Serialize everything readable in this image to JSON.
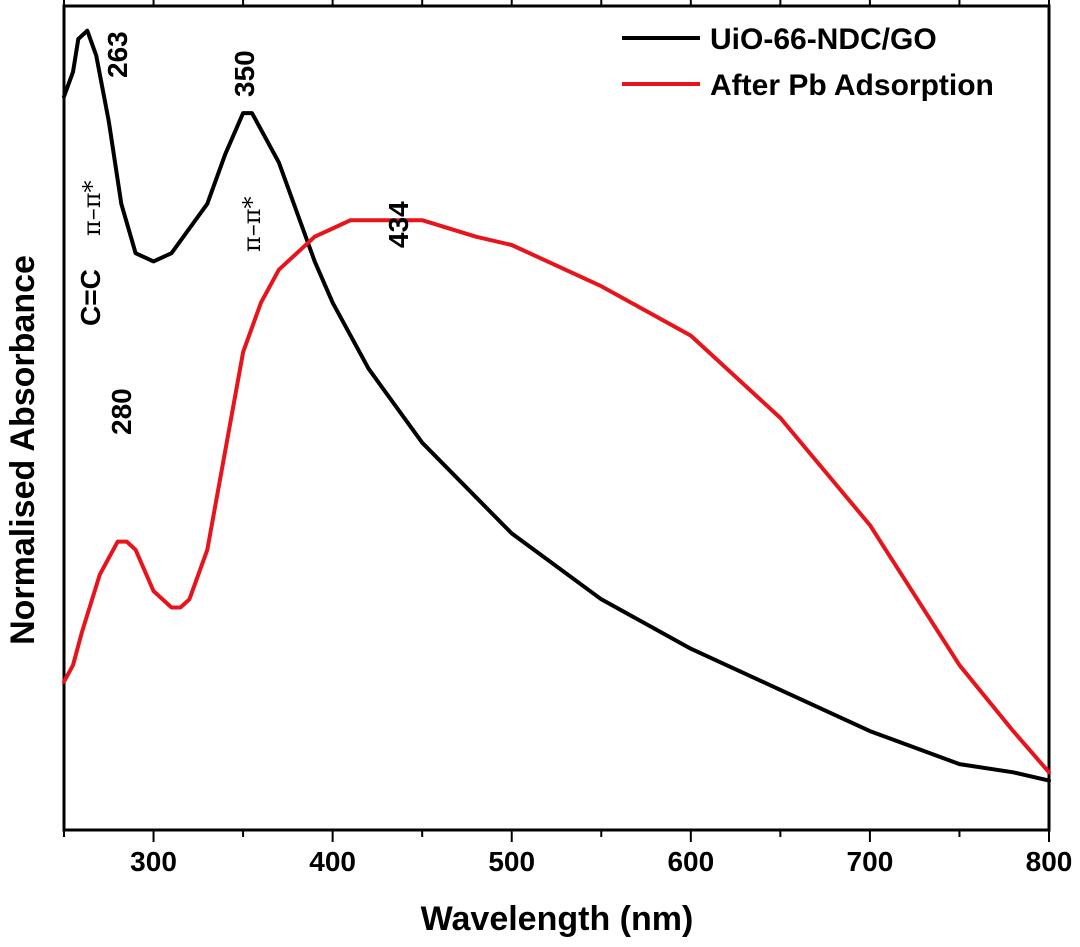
{
  "chart_data": {
    "type": "line",
    "xlabel": "Wavelength (nm)",
    "ylabel": "Normalised Absorbance",
    "xlim": [
      250,
      800
    ],
    "ylim": [
      0,
      1
    ],
    "x_ticks": [
      300,
      400,
      500,
      600,
      700,
      800
    ],
    "grid": false,
    "legend_position": "top-right",
    "colors": {
      "series1": "#000000",
      "series2": "#e8141b"
    },
    "series": [
      {
        "name": "UiO-66-NDC/GO",
        "color": "#000000",
        "x": [
          250,
          255,
          258,
          263,
          268,
          275,
          282,
          290,
          300,
          310,
          320,
          330,
          340,
          350,
          355,
          360,
          370,
          380,
          390,
          400,
          420,
          450,
          500,
          550,
          600,
          650,
          700,
          750,
          780,
          800
        ],
        "y": [
          0.89,
          0.92,
          0.96,
          0.97,
          0.94,
          0.86,
          0.76,
          0.7,
          0.69,
          0.7,
          0.73,
          0.76,
          0.82,
          0.87,
          0.87,
          0.85,
          0.81,
          0.75,
          0.69,
          0.64,
          0.56,
          0.47,
          0.36,
          0.28,
          0.22,
          0.17,
          0.12,
          0.08,
          0.07,
          0.06
        ]
      },
      {
        "name": "After Pb Adsorption",
        "color": "#e8141b",
        "x": [
          250,
          255,
          260,
          270,
          280,
          285,
          290,
          300,
          310,
          315,
          320,
          330,
          340,
          350,
          360,
          370,
          380,
          390,
          400,
          410,
          420,
          434,
          450,
          480,
          500,
          550,
          600,
          650,
          700,
          750,
          780,
          800
        ],
        "y": [
          0.18,
          0.2,
          0.24,
          0.31,
          0.35,
          0.35,
          0.34,
          0.29,
          0.27,
          0.27,
          0.28,
          0.34,
          0.46,
          0.58,
          0.64,
          0.68,
          0.7,
          0.72,
          0.73,
          0.74,
          0.74,
          0.74,
          0.74,
          0.72,
          0.71,
          0.66,
          0.6,
          0.5,
          0.37,
          0.2,
          0.12,
          0.07
        ]
      }
    ],
    "annotations": [
      {
        "id": "peak-263",
        "text": "263",
        "x": 263
      },
      {
        "id": "peak-350",
        "text": "350",
        "x": 350
      },
      {
        "id": "peak-434",
        "text": "434",
        "x": 434
      },
      {
        "id": "peak-280",
        "text": "280",
        "x": 280
      },
      {
        "id": "cc-label",
        "text": "C=C",
        "x": 263
      },
      {
        "id": "pi-263",
        "text": "π–π*",
        "x": 263
      },
      {
        "id": "pi-350",
        "text": "π–π*",
        "x": 350
      }
    ]
  }
}
